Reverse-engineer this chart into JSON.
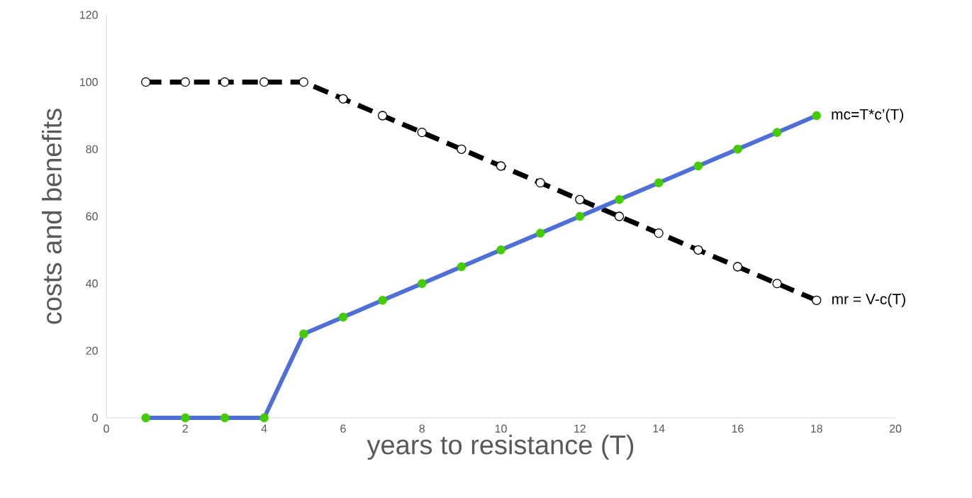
{
  "chart_data": {
    "type": "line",
    "xlabel": "years to resistance (T)",
    "ylabel": "costs and benefits",
    "x": [
      1,
      2,
      3,
      4,
      5,
      6,
      7,
      8,
      9,
      10,
      11,
      12,
      13,
      14,
      15,
      16,
      17,
      18
    ],
    "xlim": [
      0,
      20
    ],
    "xticks": [
      0,
      2,
      4,
      6,
      8,
      10,
      12,
      14,
      16,
      18,
      20
    ],
    "ylim": [
      0,
      120
    ],
    "yticks": [
      0,
      20,
      40,
      60,
      80,
      100,
      120
    ],
    "grid": false,
    "legend": false,
    "marker": "circle",
    "series": [
      {
        "name": "mr = V-c(T)",
        "color": "#000000",
        "line_style": "dashed",
        "values": [
          100,
          100,
          100,
          100,
          100,
          95,
          90,
          85,
          80,
          75,
          70,
          65,
          60,
          55,
          50,
          45,
          40,
          35
        ]
      },
      {
        "name": "mc=T*c’(T)",
        "color": "#4f6fd6",
        "line_style": "solid",
        "values": [
          0,
          0,
          0,
          0,
          25,
          30,
          35,
          40,
          45,
          50,
          55,
          60,
          65,
          70,
          75,
          80,
          85,
          90
        ]
      }
    ]
  }
}
